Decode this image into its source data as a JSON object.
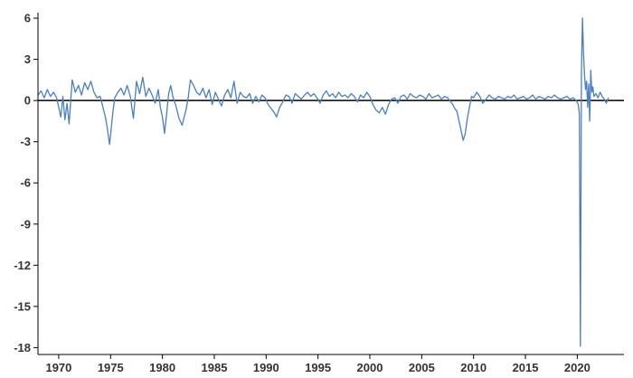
{
  "chart_data": {
    "type": "line",
    "title": "",
    "xlabel": "",
    "ylabel": "",
    "xlim": [
      1968.0,
      2024.5
    ],
    "ylim": [
      -18.5,
      6.4
    ],
    "grid": false,
    "legend": "none",
    "colors": {
      "line": "#4a7fc1",
      "zero_line": "#000000",
      "axis": "#000000"
    },
    "y_ticks": [
      6,
      3,
      0,
      -3,
      -6,
      -9,
      -12,
      -15,
      -18
    ],
    "x_ticks": [
      1970,
      1975,
      1980,
      1985,
      1990,
      1995,
      2000,
      2005,
      2010,
      2015,
      2020
    ],
    "y_tick_labels": [
      "6",
      "3",
      "0",
      "-3",
      "-6",
      "-9",
      "-12",
      "-15",
      "-18"
    ],
    "x_tick_labels": [
      "1970",
      "1975",
      "1980",
      "1985",
      "1990",
      "1995",
      "2000",
      "2005",
      "2010",
      "2015",
      "2020"
    ],
    "series": [
      {
        "x": [
          1968.0,
          1968.3,
          1968.6,
          1968.9,
          1969.2,
          1969.5,
          1969.8,
          1970.0,
          1970.2,
          1970.4,
          1970.6,
          1970.8,
          1971.0,
          1971.3,
          1971.6,
          1971.9,
          1972.2,
          1972.5,
          1972.8,
          1973.1,
          1973.4,
          1973.7,
          1974.0,
          1974.3,
          1974.5,
          1974.7,
          1974.9,
          1975.0,
          1975.2,
          1975.4,
          1975.7,
          1976.0,
          1976.3,
          1976.6,
          1976.9,
          1977.2,
          1977.5,
          1977.8,
          1978.1,
          1978.4,
          1978.7,
          1979.0,
          1979.3,
          1979.6,
          1979.8,
          1980.0,
          1980.2,
          1980.4,
          1980.6,
          1980.8,
          1981.0,
          1981.3,
          1981.6,
          1981.9,
          1982.1,
          1982.3,
          1982.5,
          1982.7,
          1983.0,
          1983.3,
          1983.6,
          1983.9,
          1984.2,
          1984.5,
          1984.8,
          1985.1,
          1985.4,
          1985.7,
          1986.0,
          1986.3,
          1986.6,
          1986.9,
          1987.2,
          1987.5,
          1987.8,
          1988.1,
          1988.4,
          1988.7,
          1989.0,
          1989.3,
          1989.6,
          1989.9,
          1990.2,
          1990.5,
          1990.8,
          1991.0,
          1991.3,
          1991.6,
          1991.9,
          1992.2,
          1992.5,
          1992.8,
          1993.1,
          1993.4,
          1993.7,
          1994.0,
          1994.3,
          1994.6,
          1994.9,
          1995.2,
          1995.5,
          1995.8,
          1996.1,
          1996.4,
          1996.7,
          1997.0,
          1997.3,
          1997.6,
          1997.9,
          1998.2,
          1998.5,
          1998.8,
          1999.1,
          1999.4,
          1999.7,
          2000.0,
          2000.3,
          2000.6,
          2000.9,
          2001.2,
          2001.5,
          2001.8,
          2002.1,
          2002.4,
          2002.7,
          2003.0,
          2003.3,
          2003.6,
          2003.9,
          2004.2,
          2004.5,
          2004.8,
          2005.1,
          2005.4,
          2005.7,
          2006.0,
          2006.3,
          2006.6,
          2006.9,
          2007.2,
          2007.5,
          2007.8,
          2008.0,
          2008.2,
          2008.4,
          2008.6,
          2008.8,
          2009.0,
          2009.2,
          2009.4,
          2009.6,
          2009.8,
          2010.0,
          2010.3,
          2010.6,
          2010.9,
          2011.2,
          2011.5,
          2011.8,
          2012.1,
          2012.4,
          2012.7,
          2013.0,
          2013.3,
          2013.6,
          2013.9,
          2014.2,
          2014.5,
          2014.8,
          2015.1,
          2015.4,
          2015.7,
          2016.0,
          2016.3,
          2016.6,
          2016.9,
          2017.2,
          2017.5,
          2017.8,
          2018.1,
          2018.4,
          2018.7,
          2019.0,
          2019.3,
          2019.6,
          2019.9,
          2020.1,
          2020.2,
          2020.3,
          2020.4,
          2020.5,
          2020.6,
          2020.7,
          2020.8,
          2020.9,
          2021.0,
          2021.1,
          2021.2,
          2021.3,
          2021.4,
          2021.5,
          2021.6,
          2021.8,
          2022.0,
          2022.2,
          2022.4,
          2022.6,
          2022.8,
          2023.0
        ],
        "values": [
          0.4,
          0.7,
          0.2,
          0.8,
          0.3,
          0.6,
          0.2,
          -0.5,
          -1.2,
          0.3,
          -1.4,
          -0.2,
          -1.7,
          1.5,
          0.6,
          1.1,
          0.4,
          1.3,
          0.8,
          1.4,
          0.6,
          0.2,
          0.3,
          -0.6,
          -1.2,
          -2.1,
          -3.2,
          -2.5,
          -1.0,
          0.2,
          0.6,
          0.9,
          0.4,
          1.1,
          0.3,
          -1.3,
          1.4,
          0.5,
          1.7,
          0.3,
          0.9,
          0.4,
          -0.2,
          0.8,
          -0.5,
          -1.2,
          -2.4,
          -1.0,
          0.5,
          1.1,
          0.3,
          -0.4,
          -1.3,
          -1.8,
          -1.2,
          -0.6,
          0.3,
          1.5,
          1.1,
          0.6,
          0.4,
          0.9,
          0.2,
          0.8,
          -0.3,
          0.6,
          0.1,
          -0.4,
          0.4,
          0.8,
          0.2,
          1.4,
          -0.2,
          0.6,
          0.3,
          0.2,
          0.5,
          -0.2,
          0.3,
          -0.1,
          0.4,
          0.2,
          -0.3,
          -0.6,
          -0.9,
          -1.2,
          -0.5,
          -0.1,
          0.4,
          0.3,
          -0.2,
          0.5,
          0.3,
          0.1,
          0.4,
          0.6,
          0.3,
          0.5,
          0.2,
          -0.2,
          0.4,
          0.7,
          0.3,
          0.5,
          0.2,
          0.6,
          0.3,
          0.4,
          0.2,
          0.5,
          0.3,
          -0.1,
          0.4,
          0.2,
          0.6,
          0.3,
          -0.3,
          -0.7,
          -0.9,
          -0.5,
          -1.0,
          -0.3,
          0.1,
          0.2,
          -0.2,
          0.3,
          0.4,
          0.1,
          0.5,
          0.3,
          0.2,
          0.4,
          0.3,
          0.1,
          0.5,
          0.2,
          0.3,
          0.4,
          0.1,
          0.3,
          0.2,
          -0.1,
          -0.3,
          -0.6,
          -0.8,
          -1.5,
          -2.2,
          -2.9,
          -2.4,
          -1.3,
          -0.5,
          0.3,
          0.2,
          0.6,
          0.3,
          -0.2,
          0.1,
          0.4,
          0.2,
          0.1,
          0.3,
          0.2,
          0.1,
          0.3,
          0.2,
          0.4,
          0.1,
          0.2,
          0.3,
          0.1,
          0.2,
          0.4,
          0.1,
          0.3,
          0.2,
          0.1,
          0.3,
          0.2,
          0.4,
          0.2,
          0.1,
          0.2,
          0.3,
          0.1,
          0.2,
          0.0,
          -0.3,
          -1.0,
          -17.9,
          2.0,
          6.0,
          3.5,
          1.8,
          0.8,
          1.4,
          -0.5,
          1.2,
          -1.5,
          2.2,
          0.6,
          1.0,
          0.3,
          0.5,
          0.2,
          0.6,
          0.3,
          0.1,
          -0.2,
          0.2
        ]
      }
    ]
  }
}
